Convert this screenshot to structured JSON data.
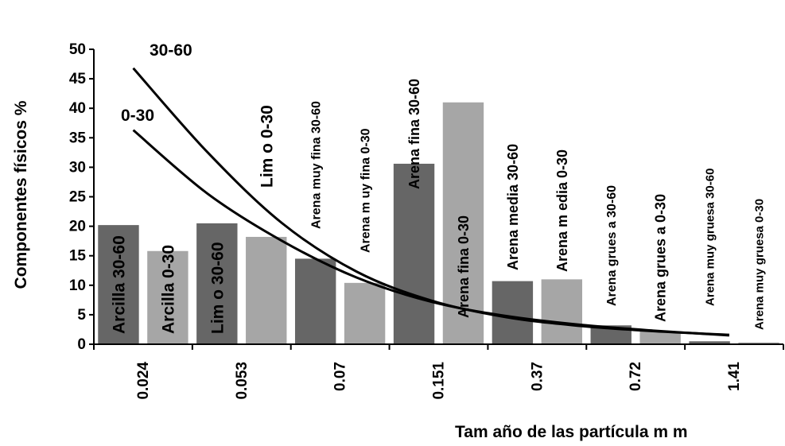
{
  "chart_data": {
    "type": "bar",
    "xlabel": "Tam año de las partícula m m",
    "ylabel": "Componentes físicos %",
    "ylim": [
      0,
      50
    ],
    "yticks": [
      0,
      5,
      10,
      15,
      20,
      25,
      30,
      35,
      40,
      45,
      50
    ],
    "x_tick_labels": [
      "0.024",
      "0.053",
      "0.07",
      "0.151",
      "0.37",
      "0.72",
      "1.41"
    ],
    "grid": false,
    "legend": "none",
    "colors": {
      "depth_30_60": "#666666",
      "depth_0_30": "#a6a6a6",
      "curve": "#000000"
    },
    "bars": [
      {
        "label": "Arcilla 30-60",
        "group": "0.024",
        "depth": "30-60",
        "value": 20.2
      },
      {
        "label": "Arcilla 0-30",
        "group": "0.024",
        "depth": "0-30",
        "value": 15.8
      },
      {
        "label": "Lim o 30-60",
        "group": "0.053",
        "depth": "30-60",
        "value": 20.5
      },
      {
        "label": "Lim o 0-30",
        "group": "0.053",
        "depth": "0-30",
        "value": 18.2
      },
      {
        "label": "Arena muy fina 30-60",
        "group": "0.07",
        "depth": "30-60",
        "value": 14.5
      },
      {
        "label": "Arena m uy fina 0-30",
        "group": "0.07",
        "depth": "0-30",
        "value": 10.4
      },
      {
        "label": "Arena fina 30-60",
        "group": "0.151",
        "depth": "30-60",
        "value": 30.6
      },
      {
        "label": "Arena fina 0-30",
        "group": "0.151",
        "depth": "0-30",
        "value": 41.0
      },
      {
        "label": "Arena media 30-60",
        "group": "0.37",
        "depth": "30-60",
        "value": 10.7
      },
      {
        "label": "Arena m edia 0-30",
        "group": "0.37",
        "depth": "0-30",
        "value": 11.0
      },
      {
        "label": "Arena grues a 30-60",
        "group": "0.72",
        "depth": "30-60",
        "value": 3.2
      },
      {
        "label": "Arena grues a 0-30",
        "group": "0.72",
        "depth": "0-30",
        "value": 2.2
      },
      {
        "label": "Arena muy gruesa 30-60",
        "group": "1.41",
        "depth": "30-60",
        "value": 0.5
      },
      {
        "label": "Arena muy gruesa 0-30",
        "group": "1.41",
        "depth": "0-30",
        "value": 0.3
      }
    ],
    "series": [
      {
        "name": "30-60",
        "type": "line",
        "values": [
          46.8,
          32.5,
          20.5,
          12.3,
          7.4,
          4.6,
          3.1,
          2.2,
          1.6
        ]
      },
      {
        "name": "0-30",
        "type": "line",
        "values": [
          36.3,
          25.5,
          17.5,
          11.3,
          7.2,
          4.8,
          3.3,
          2.3,
          1.5
        ]
      }
    ]
  }
}
